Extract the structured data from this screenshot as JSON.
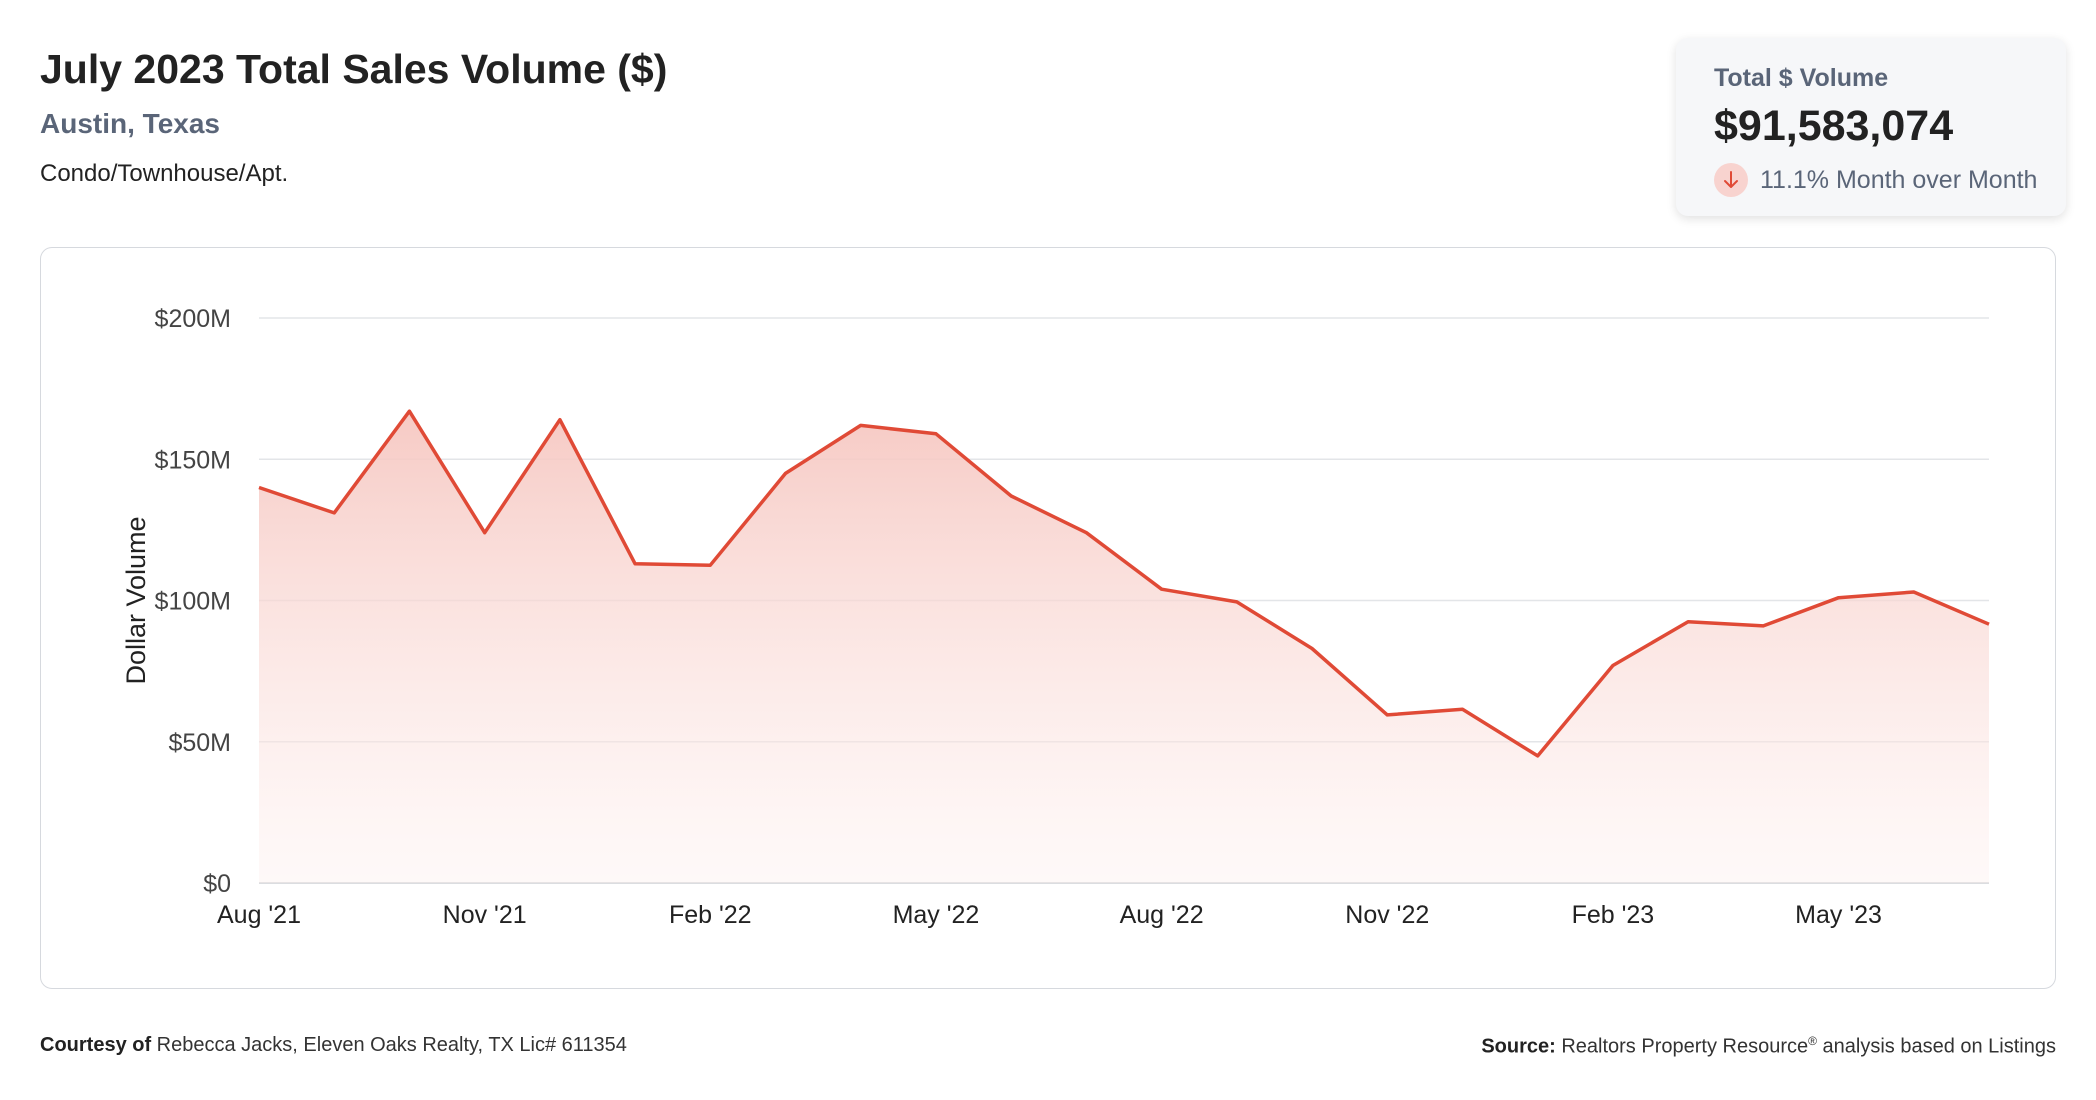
{
  "header": {
    "title": "July 2023 Total Sales Volume ($)",
    "location": "Austin, Texas",
    "property_type": "Condo/Townhouse/Apt."
  },
  "kpi": {
    "label": "Total $ Volume",
    "value": "$91,583,074",
    "change": "11.1% Month over Month",
    "direction_icon": "arrow-down-icon"
  },
  "colors": {
    "line": "#e04a36",
    "fill_top": "#f6c7c1",
    "grid": "#e3e5e8",
    "badge": "#f8d3cf"
  },
  "chart_data": {
    "type": "area",
    "ylabel": "Dollar Volume",
    "ylim": [
      0,
      200000000
    ],
    "y_ticks": [
      "$0",
      "$50M",
      "$100M",
      "$150M",
      "$200M"
    ],
    "y_tick_values": [
      0,
      50000000,
      100000000,
      150000000,
      200000000
    ],
    "x_ticks": [
      "Aug '21",
      "Nov '21",
      "Feb '22",
      "May '22",
      "Aug '22",
      "Nov '22",
      "Feb '23",
      "May '23"
    ],
    "x_tick_indices": [
      0,
      3,
      6,
      9,
      12,
      15,
      18,
      21
    ],
    "x": [
      "2021-08",
      "2021-09",
      "2021-10",
      "2021-11",
      "2021-12",
      "2022-01",
      "2022-02",
      "2022-03",
      "2022-04",
      "2022-05",
      "2022-06",
      "2022-07",
      "2022-08",
      "2022-09",
      "2022-10",
      "2022-11",
      "2022-12",
      "2023-01",
      "2023-02",
      "2023-03",
      "2023-04",
      "2023-05",
      "2023-06",
      "2023-07"
    ],
    "values": [
      140000000,
      131000000,
      167000000,
      124000000,
      164000000,
      113000000,
      112500000,
      145000000,
      162000000,
      159000000,
      137000000,
      124000000,
      104000000,
      99500000,
      83000000,
      59500000,
      61500000,
      45000000,
      77000000,
      92500000,
      91000000,
      101000000,
      103000000,
      91600000
    ]
  },
  "footer": {
    "left_label": "Courtesy of",
    "left_text": " Rebecca Jacks, Eleven Oaks Realty, TX Lic# 611354",
    "right_label": "Source:",
    "right_text": " Realtors Property Resource",
    "right_sup": "®",
    "right_tail": " analysis based on Listings"
  }
}
